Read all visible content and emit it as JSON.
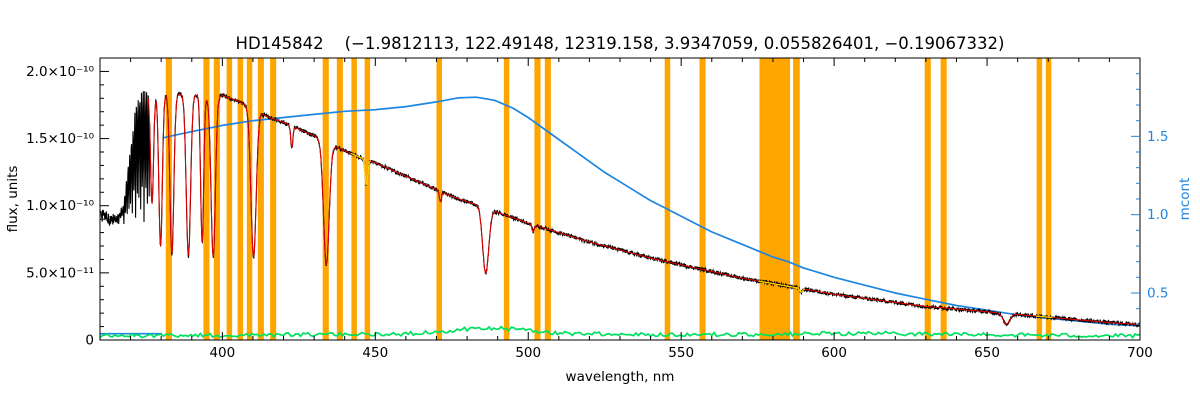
{
  "chart_data": {
    "type": "line",
    "title": "HD145842    (−1.9812113, 122.49148, 12319.158, 3.9347059, 0.055826401, −0.19067332)",
    "star_id": "HD145842",
    "title_params": [
      -1.9812113,
      122.49148,
      12319.158,
      3.9347059,
      0.055826401,
      -0.19067332
    ],
    "xlabel": "wavelength, nm",
    "ylabel_left": "flux, units",
    "ylabel_right": "mcont",
    "x_range": [
      360,
      700
    ],
    "x_major_ticks": [
      400,
      450,
      500,
      550,
      600,
      650,
      700
    ],
    "x_minor_step_nm": 10,
    "y_left_range_1e10": [
      0,
      2.1
    ],
    "y_left_major_ticks_1e10": [
      0,
      0.5,
      1.0,
      1.5,
      2.0
    ],
    "y_left_tick_labels": [
      "0",
      "5.0×10⁻¹¹",
      "1.0×10⁻¹⁰",
      "1.5×10⁻¹⁰",
      "2.0×10⁻¹⁰"
    ],
    "y_right_range": [
      0.2,
      2.0
    ],
    "y_right_major_ticks": [
      0.5,
      1.0,
      1.5
    ],
    "y_right_tick_labels": [
      "0.5",
      "1.0",
      "1.5"
    ],
    "grid": false,
    "legend": false,
    "colors": {
      "spectrum": "#000000",
      "fit": "#e60000",
      "fit_alt": "#ffd400",
      "residual": "#00e060",
      "mcont": "#1e86e0",
      "mask": "#ffa500",
      "axis": "#000000",
      "background": "#ffffff"
    },
    "series": [
      {
        "name": "observed-flux-spectrum",
        "color_key": "spectrum"
      },
      {
        "name": "model-fit",
        "color_key": "fit"
      },
      {
        "name": "fit-alt-segments",
        "color_key": "fit_alt"
      },
      {
        "name": "residual-near-zero",
        "color_key": "residual"
      },
      {
        "name": "mcont-ratio",
        "color_key": "mcont"
      },
      {
        "name": "masked-regions",
        "color_key": "mask"
      }
    ],
    "mask_bands_nm": [
      [
        381.5,
        383.5
      ],
      [
        393.8,
        395.8
      ],
      [
        397.2,
        399.2
      ],
      [
        401.4,
        403.2
      ],
      [
        405.0,
        406.8
      ],
      [
        408.0,
        409.8
      ],
      [
        411.6,
        413.6
      ],
      [
        415.6,
        417.6
      ],
      [
        432.8,
        434.8
      ],
      [
        437.4,
        439.4
      ],
      [
        442.2,
        444.0
      ],
      [
        446.5,
        448.3
      ],
      [
        470.0,
        471.8
      ],
      [
        492.0,
        493.8
      ],
      [
        502.0,
        504.0
      ],
      [
        505.4,
        507.4
      ],
      [
        544.6,
        546.4
      ],
      [
        556.0,
        558.0
      ],
      [
        575.6,
        585.6
      ],
      [
        586.6,
        588.8
      ],
      [
        629.6,
        631.6
      ],
      [
        634.8,
        636.8
      ],
      [
        666.2,
        668.0
      ],
      [
        669.2,
        671.0
      ]
    ],
    "flux_continuum_1e10": [
      [
        360,
        0.93
      ],
      [
        363,
        0.9
      ],
      [
        366,
        0.92
      ],
      [
        368,
        1.05
      ],
      [
        370,
        1.45
      ],
      [
        372,
        1.78
      ],
      [
        374,
        1.85
      ],
      [
        378,
        1.84
      ],
      [
        385,
        1.83
      ],
      [
        390,
        1.83
      ],
      [
        395,
        1.81
      ],
      [
        400,
        1.82
      ],
      [
        405,
        1.78
      ],
      [
        410,
        1.72
      ],
      [
        415,
        1.66
      ],
      [
        420,
        1.62
      ],
      [
        425,
        1.57
      ],
      [
        430,
        1.52
      ],
      [
        435,
        1.46
      ],
      [
        440,
        1.41
      ],
      [
        445,
        1.36
      ],
      [
        450,
        1.32
      ],
      [
        455,
        1.27
      ],
      [
        460,
        1.22
      ],
      [
        465,
        1.17
      ],
      [
        470,
        1.12
      ],
      [
        475,
        1.07
      ],
      [
        480,
        1.03
      ],
      [
        486,
        0.99
      ],
      [
        490,
        0.95
      ],
      [
        495,
        0.91
      ],
      [
        500,
        0.87
      ],
      [
        510,
        0.8
      ],
      [
        520,
        0.73
      ],
      [
        530,
        0.67
      ],
      [
        540,
        0.61
      ],
      [
        550,
        0.56
      ],
      [
        560,
        0.51
      ],
      [
        570,
        0.46
      ],
      [
        580,
        0.42
      ],
      [
        590,
        0.38
      ],
      [
        600,
        0.34
      ],
      [
        610,
        0.31
      ],
      [
        620,
        0.28
      ],
      [
        630,
        0.25
      ],
      [
        640,
        0.23
      ],
      [
        650,
        0.21
      ],
      [
        660,
        0.19
      ],
      [
        670,
        0.17
      ],
      [
        680,
        0.15
      ],
      [
        690,
        0.13
      ],
      [
        700,
        0.115
      ]
    ],
    "absorption_lines": [
      {
        "center": 377.0,
        "depth": 0.45,
        "sigma": 0.7
      },
      {
        "center": 379.8,
        "depth": 0.62,
        "sigma": 0.8
      },
      {
        "center": 383.5,
        "depth": 0.65,
        "sigma": 0.9
      },
      {
        "center": 388.9,
        "depth": 0.66,
        "sigma": 1.0
      },
      {
        "center": 393.4,
        "depth": 0.6,
        "sigma": 0.7
      },
      {
        "center": 397.0,
        "depth": 0.66,
        "sigma": 1.0
      },
      {
        "center": 410.2,
        "depth": 0.64,
        "sigma": 1.2
      },
      {
        "center": 422.7,
        "depth": 0.1,
        "sigma": 0.5
      },
      {
        "center": 434.0,
        "depth": 0.62,
        "sigma": 1.3
      },
      {
        "center": 447.1,
        "depth": 0.14,
        "sigma": 0.6
      },
      {
        "center": 471.3,
        "depth": 0.07,
        "sigma": 0.5
      },
      {
        "center": 486.1,
        "depth": 0.5,
        "sigma": 1.4
      },
      {
        "center": 501.6,
        "depth": 0.06,
        "sigma": 0.5
      },
      {
        "center": 589.2,
        "depth": 0.07,
        "sigma": 0.6
      },
      {
        "center": 656.3,
        "depth": 0.4,
        "sigma": 1.5
      }
    ],
    "residual_1e10": [
      [
        360,
        0.03
      ],
      [
        380,
        0.035
      ],
      [
        400,
        0.035
      ],
      [
        430,
        0.04
      ],
      [
        460,
        0.045
      ],
      [
        480,
        0.08
      ],
      [
        490,
        0.09
      ],
      [
        500,
        0.07
      ],
      [
        510,
        0.05
      ],
      [
        530,
        0.045
      ],
      [
        550,
        0.04
      ],
      [
        570,
        0.04
      ],
      [
        590,
        0.045
      ],
      [
        610,
        0.05
      ],
      [
        630,
        0.045
      ],
      [
        650,
        0.04
      ],
      [
        670,
        0.035
      ],
      [
        700,
        0.03
      ]
    ],
    "mcont_low_segment": {
      "x_nm": [
        360,
        380.3
      ],
      "value": 0.24
    },
    "mcont_curve": [
      [
        380.5,
        1.49
      ],
      [
        385,
        1.51
      ],
      [
        390,
        1.53
      ],
      [
        400,
        1.57
      ],
      [
        410,
        1.6
      ],
      [
        420,
        1.62
      ],
      [
        430,
        1.64
      ],
      [
        440,
        1.66
      ],
      [
        450,
        1.67
      ],
      [
        460,
        1.69
      ],
      [
        470,
        1.72
      ],
      [
        477,
        1.745
      ],
      [
        483,
        1.75
      ],
      [
        489,
        1.73
      ],
      [
        495,
        1.68
      ],
      [
        500,
        1.62
      ],
      [
        505,
        1.55
      ],
      [
        510,
        1.48
      ],
      [
        515,
        1.41
      ],
      [
        520,
        1.34
      ],
      [
        525,
        1.27
      ],
      [
        530,
        1.21
      ],
      [
        535,
        1.15
      ],
      [
        540,
        1.09
      ],
      [
        545,
        1.04
      ],
      [
        550,
        0.99
      ],
      [
        555,
        0.94
      ],
      [
        560,
        0.89
      ],
      [
        565,
        0.85
      ],
      [
        570,
        0.81
      ],
      [
        575,
        0.77
      ],
      [
        580,
        0.73
      ],
      [
        585,
        0.7
      ],
      [
        590,
        0.66
      ],
      [
        595,
        0.63
      ],
      [
        600,
        0.6
      ],
      [
        610,
        0.55
      ],
      [
        620,
        0.5
      ],
      [
        630,
        0.46
      ],
      [
        640,
        0.42
      ],
      [
        650,
        0.39
      ],
      [
        660,
        0.36
      ],
      [
        670,
        0.34
      ],
      [
        680,
        0.32
      ],
      [
        690,
        0.3
      ],
      [
        700,
        0.29
      ]
    ],
    "yellow_segments_nm": [
      [
        442.0,
        448.5
      ],
      [
        575.2,
        590.5
      ],
      [
        666.0,
        671.5
      ]
    ],
    "fit_start_nm": 375.8,
    "noise_model": {
      "osc_start_nm": 364.5,
      "osc_end_nm": 376.2,
      "floor_1e10": 0.88,
      "period_nm": 0.55,
      "pre_noise_1e10": 0.1,
      "osc_noise_1e10": 0.05,
      "post_noise_1e10": 0.028
    }
  }
}
